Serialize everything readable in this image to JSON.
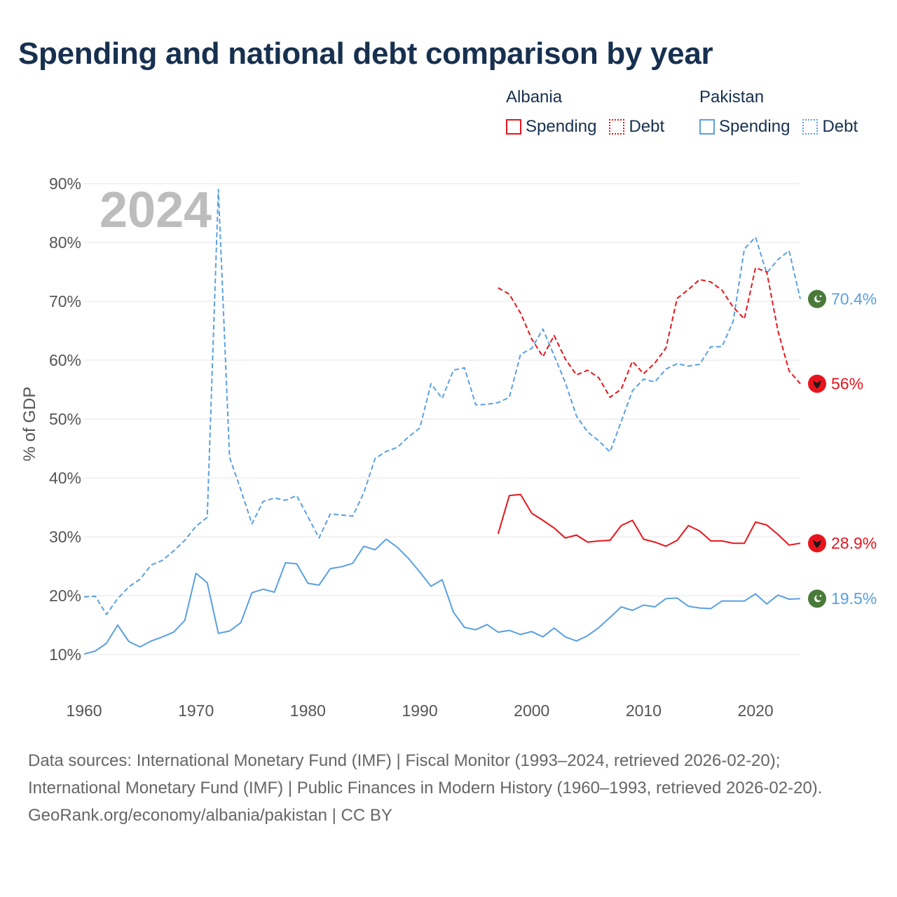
{
  "title": "Spending and national debt comparison by year",
  "legend": {
    "groups": [
      {
        "name": "Albania",
        "color": "#e8141c",
        "items": [
          "Spending",
          "Debt"
        ]
      },
      {
        "name": "Pakistan",
        "color": "#5aa0e0",
        "items": [
          "Spending",
          "Debt"
        ]
      }
    ]
  },
  "year_label": "2024",
  "footer": {
    "sources": "Data sources: International Monetary Fund (IMF) | Fiscal Monitor (1993–2024, retrieved 2026-02-20); International Monetary Fund (IMF) | Public Finances in Modern History (1960–1993, retrieved 2026-02-20).",
    "credit": "GeoRank.org/economy/albania/pakistan | CC BY"
  },
  "colors": {
    "albania": "#e8141c",
    "pakistan": "#5aa0e0",
    "title": "#17304f",
    "grid": "#e6e6e6",
    "axis_text": "#555555",
    "year": "#bdbdbd",
    "pk_flag": "#4a7a3a"
  },
  "chart_data": {
    "type": "line",
    "ylabel": "% of GDP",
    "xlabel": "",
    "xlim": [
      1960,
      2024
    ],
    "ylim": [
      10,
      90
    ],
    "x_ticks": [
      1960,
      1970,
      1980,
      1990,
      2000,
      2010,
      2020
    ],
    "y_ticks": [
      {
        "v": 10,
        "label": "10%"
      },
      {
        "v": 20,
        "label": "20%"
      },
      {
        "v": 30,
        "label": "30%"
      },
      {
        "v": 40,
        "label": "40%"
      },
      {
        "v": 50,
        "label": "50%"
      },
      {
        "v": 60,
        "label": "60%"
      },
      {
        "v": 70,
        "label": "70%"
      },
      {
        "v": 80,
        "label": "80%"
      },
      {
        "v": 90,
        "label": "90%"
      }
    ],
    "series": [
      {
        "name": "Pakistan Debt",
        "country": "pakistan",
        "style": "dashed",
        "end_label": "70.4%",
        "x": [
          1960,
          1961,
          1962,
          1963,
          1964,
          1965,
          1966,
          1967,
          1968,
          1969,
          1970,
          1971,
          1972,
          1973,
          1974,
          1975,
          1976,
          1977,
          1978,
          1979,
          1980,
          1981,
          1982,
          1983,
          1984,
          1985,
          1986,
          1987,
          1988,
          1989,
          1990,
          1991,
          1992,
          1993,
          1994,
          1995,
          1996,
          1997,
          1998,
          1999,
          2000,
          2001,
          2002,
          2003,
          2004,
          2005,
          2006,
          2007,
          2008,
          2009,
          2010,
          2011,
          2012,
          2013,
          2014,
          2015,
          2016,
          2017,
          2018,
          2019,
          2020,
          2021,
          2022,
          2023,
          2024
        ],
        "values": [
          19.8,
          19.9,
          16.8,
          19.5,
          21.5,
          22.8,
          25.2,
          26.0,
          27.6,
          29.4,
          31.8,
          33.3,
          89.0,
          43.5,
          38.0,
          32.2,
          36.0,
          36.6,
          36.2,
          37.0,
          33.4,
          29.8,
          33.9,
          33.7,
          33.5,
          37.5,
          43.3,
          44.5,
          45.2,
          47.0,
          48.5,
          56.0,
          53.5,
          58.3,
          58.7,
          52.4,
          52.5,
          52.8,
          53.7,
          61.0,
          62.0,
          65.3,
          60.8,
          56.2,
          50.5,
          47.8,
          46.3,
          44.4,
          49.6,
          54.8,
          56.8,
          56.3,
          58.5,
          59.4,
          59.0,
          59.3,
          62.3,
          62.3,
          66.6,
          78.9,
          80.9,
          74.8,
          77.1,
          78.6,
          70.4
        ]
      },
      {
        "name": "Pakistan Spending",
        "country": "pakistan",
        "style": "solid",
        "end_label": "19.5%",
        "x": [
          1960,
          1961,
          1962,
          1963,
          1964,
          1965,
          1966,
          1967,
          1968,
          1969,
          1970,
          1971,
          1972,
          1973,
          1974,
          1975,
          1976,
          1977,
          1978,
          1979,
          1980,
          1981,
          1982,
          1983,
          1984,
          1985,
          1986,
          1987,
          1988,
          1989,
          1990,
          1991,
          1992,
          1993,
          1994,
          1995,
          1996,
          1997,
          1998,
          1999,
          2000,
          2001,
          2002,
          2003,
          2004,
          2005,
          2006,
          2007,
          2008,
          2009,
          2010,
          2011,
          2012,
          2013,
          2014,
          2015,
          2016,
          2017,
          2018,
          2019,
          2020,
          2021,
          2022,
          2023,
          2024
        ],
        "values": [
          10.1,
          10.6,
          11.9,
          15.0,
          12.2,
          11.3,
          12.3,
          13.0,
          13.8,
          15.8,
          23.8,
          22.2,
          13.6,
          14.0,
          15.4,
          20.5,
          21.1,
          20.6,
          25.6,
          25.4,
          22.1,
          21.8,
          24.6,
          24.9,
          25.5,
          28.4,
          27.8,
          29.6,
          28.2,
          26.3,
          24.0,
          21.6,
          22.7,
          17.2,
          14.6,
          14.2,
          15.1,
          13.8,
          14.1,
          13.4,
          13.9,
          13.0,
          14.5,
          13.0,
          12.3,
          13.2,
          14.6,
          16.3,
          18.1,
          17.5,
          18.4,
          18.1,
          19.5,
          19.6,
          18.2,
          17.9,
          17.8,
          19.1,
          19.1,
          19.1,
          20.3,
          18.6,
          20.1,
          19.4,
          19.5
        ]
      },
      {
        "name": "Albania Debt",
        "country": "albania",
        "style": "dashed",
        "end_label": "56%",
        "x": [
          1997,
          1998,
          1999,
          2000,
          2001,
          2002,
          2003,
          2004,
          2005,
          2006,
          2007,
          2008,
          2009,
          2010,
          2011,
          2012,
          2013,
          2014,
          2015,
          2016,
          2017,
          2018,
          2019,
          2020,
          2021,
          2022,
          2023,
          2024
        ],
        "values": [
          72.3,
          71.2,
          68.0,
          63.6,
          60.6,
          64.2,
          60.2,
          57.5,
          58.3,
          57.0,
          53.7,
          55.1,
          59.8,
          57.7,
          59.5,
          62.1,
          70.5,
          72.0,
          73.7,
          73.3,
          71.9,
          69.0,
          67.0,
          75.7,
          75.0,
          65.0,
          58.2,
          56.0
        ]
      },
      {
        "name": "Albania Spending",
        "country": "albania",
        "style": "solid",
        "end_label": "28.9%",
        "x": [
          1997,
          1998,
          1999,
          2000,
          2001,
          2002,
          2003,
          2004,
          2005,
          2006,
          2007,
          2008,
          2009,
          2010,
          2011,
          2012,
          2013,
          2014,
          2015,
          2016,
          2017,
          2018,
          2019,
          2020,
          2021,
          2022,
          2023,
          2024
        ],
        "values": [
          30.5,
          37.0,
          37.2,
          34.0,
          32.8,
          31.5,
          29.8,
          30.3,
          29.1,
          29.3,
          29.4,
          31.9,
          32.8,
          29.6,
          29.1,
          28.4,
          29.4,
          31.9,
          31.0,
          29.3,
          29.3,
          28.9,
          28.9,
          32.5,
          32.0,
          30.4,
          28.6,
          28.9
        ]
      }
    ]
  }
}
